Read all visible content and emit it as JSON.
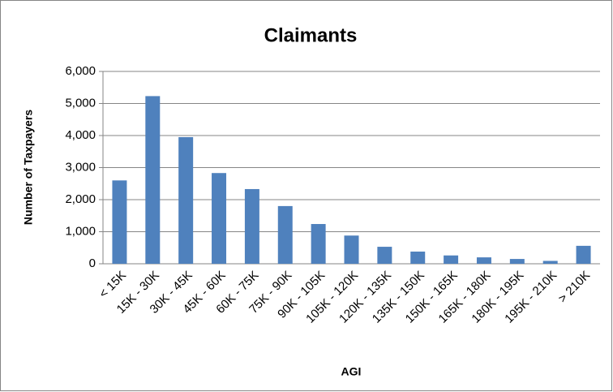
{
  "chart_data": {
    "type": "bar",
    "title": "Claimants",
    "x_label": "AGI",
    "y_label": "Number of Taxpayers",
    "categories": [
      "< 15K",
      "15K - 30K",
      "30K - 45K",
      "45K - 60K",
      "60K - 75K",
      "75K - 90K",
      "90K - 105K",
      "105K - 120K",
      "120K - 135K",
      "135K - 150K",
      "150K - 165K",
      "165K - 180K",
      "180K - 195K",
      "195K - 210K",
      "> 210K"
    ],
    "values": [
      2600,
      5230,
      3950,
      2830,
      2330,
      1800,
      1240,
      880,
      530,
      380,
      260,
      200,
      150,
      90,
      560
    ],
    "color": "#4f81bd",
    "ylim": [
      0,
      6000
    ],
    "yticks": [
      0,
      {
        "value": 1000,
        "label": "1,000"
      },
      {
        "value": 2000,
        "label": "2,000"
      },
      {
        "value": 3000,
        "label": "3,000"
      },
      {
        "value": 4000,
        "label": "4,000"
      },
      {
        "value": 5000,
        "label": "5,000"
      },
      {
        "value": 6000,
        "label": "6,000"
      }
    ],
    "grid": true
  }
}
